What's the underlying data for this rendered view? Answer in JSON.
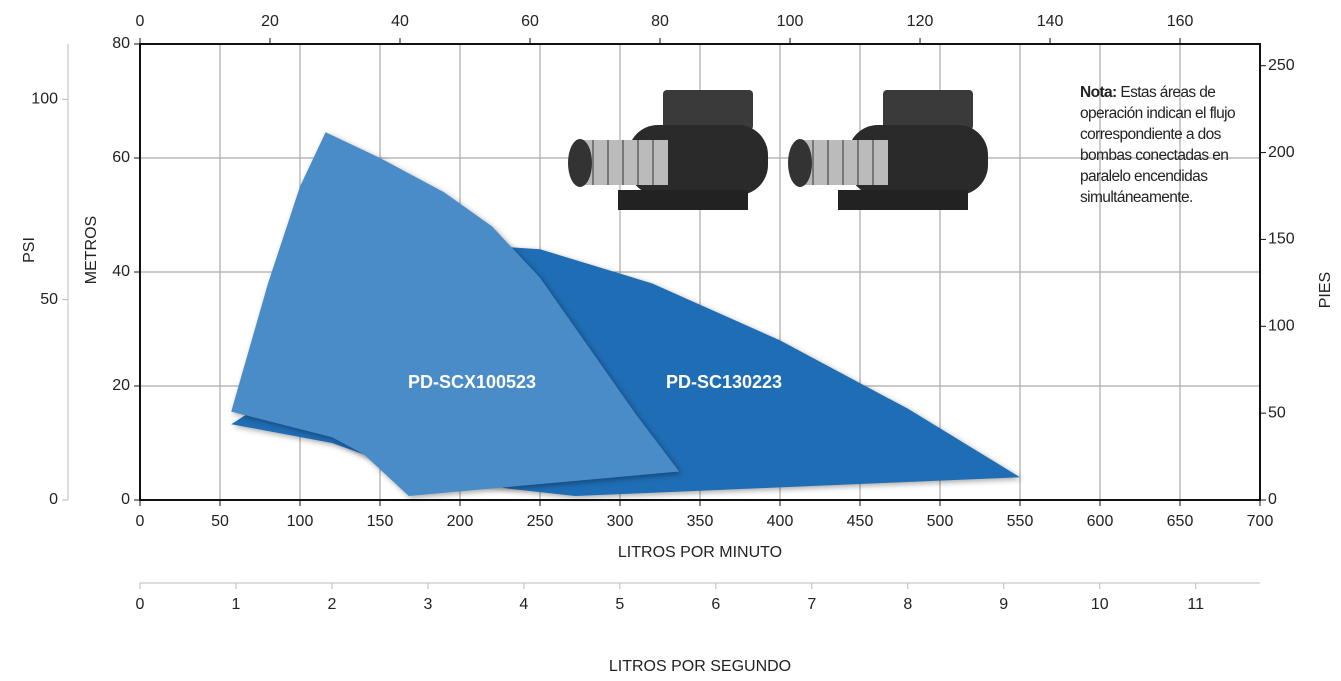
{
  "chart_data": {
    "type": "area",
    "x_label": "LITROS POR MINUTO",
    "y_label": "METROS",
    "xlim": [
      0,
      700
    ],
    "xticks": [
      0,
      50,
      100,
      150,
      200,
      250,
      300,
      350,
      400,
      450,
      500,
      550,
      600,
      650,
      700
    ],
    "ylim": [
      0,
      80
    ],
    "yticks": [
      0,
      20,
      40,
      60,
      80
    ],
    "grid": true,
    "x2lim": [
      0,
      172.3
    ],
    "x2ticks": [
      0,
      20,
      40,
      60,
      80,
      100,
      120,
      140,
      160
    ],
    "y2_label": "PIES",
    "y2lim": [
      0,
      262.5
    ],
    "y2ticks": [
      0,
      50,
      100,
      150,
      200,
      250
    ],
    "y3_label": "PSI",
    "y3lim": [
      0,
      113.8
    ],
    "y3ticks": [
      0,
      50,
      100
    ],
    "x3_label": "LITROS POR SEGUNDO",
    "x3lim": [
      0,
      11.67
    ],
    "x3ticks": [
      0,
      1,
      2,
      3,
      4,
      5,
      6,
      7,
      8,
      9,
      10,
      11
    ],
    "series": [
      {
        "name": "PD-SCX100523",
        "color": "#4a8cc8",
        "x": [
          57,
          80,
          100,
          116,
          150,
          190,
          220,
          250,
          280,
          310,
          337,
          168,
          140,
          120
        ],
        "values": [
          15.5,
          38,
          55,
          64.5,
          60,
          54,
          48,
          39,
          27,
          15,
          5,
          0.7,
          8,
          11
        ]
      },
      {
        "name": "PD-SC130223",
        "color": "#1f6db5",
        "x": [
          57,
          120,
          170,
          230,
          272,
          550,
          480,
          400,
          320,
          250,
          195,
          150
        ],
        "values": [
          13.3,
          10,
          5,
          2,
          0.7,
          4,
          16,
          28,
          38,
          44,
          45,
          30
        ]
      }
    ],
    "note": {
      "bold": "Nota:",
      "text": "Estas áreas de operación indican el flujo correspondiente a dos bombas conectadas en paralelo encendidas simultáneamente."
    }
  }
}
